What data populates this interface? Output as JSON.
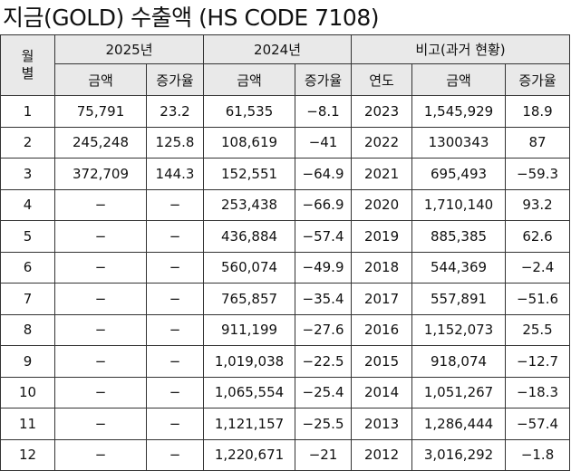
{
  "title": "지금(GOLD) 수출액 (HS CODE 7108)",
  "header": {
    "month_line1": "월",
    "month_line2": "별",
    "group_2025": "2025년",
    "group_2024": "2024년",
    "group_past": "비고(과거 현황)",
    "amount": "금액",
    "growth": "증가율",
    "year": "연도"
  },
  "rows": [
    {
      "month": "1",
      "a2025": "75,791",
      "g2025": "23.2",
      "a2024": "61,535",
      "g2024": "−8.1",
      "year": "2023",
      "past_amount": "1,545,929",
      "past_growth": "18.9"
    },
    {
      "month": "2",
      "a2025": "245,248",
      "g2025": "125.8",
      "a2024": "108,619",
      "g2024": "−41",
      "year": "2022",
      "past_amount": "1300343",
      "past_growth": "87"
    },
    {
      "month": "3",
      "a2025": "372,709",
      "g2025": "144.3",
      "a2024": "152,551",
      "g2024": "−64.9",
      "year": "2021",
      "past_amount": "695,493",
      "past_growth": "−59.3"
    },
    {
      "month": "4",
      "a2025": "−",
      "g2025": "−",
      "a2024": "253,438",
      "g2024": "−66.9",
      "year": "2020",
      "past_amount": "1,710,140",
      "past_growth": "93.2"
    },
    {
      "month": "5",
      "a2025": "−",
      "g2025": "−",
      "a2024": "436,884",
      "g2024": "−57.4",
      "year": "2019",
      "past_amount": "885,385",
      "past_growth": "62.6"
    },
    {
      "month": "6",
      "a2025": "−",
      "g2025": "−",
      "a2024": "560,074",
      "g2024": "−49.9",
      "year": "2018",
      "past_amount": "544,369",
      "past_growth": "−2.4"
    },
    {
      "month": "7",
      "a2025": "−",
      "g2025": "−",
      "a2024": "765,857",
      "g2024": "−35.4",
      "year": "2017",
      "past_amount": "557,891",
      "past_growth": "−51.6"
    },
    {
      "month": "8",
      "a2025": "−",
      "g2025": "−",
      "a2024": "911,199",
      "g2024": "−27.6",
      "year": "2016",
      "past_amount": "1,152,073",
      "past_growth": "25.5"
    },
    {
      "month": "9",
      "a2025": "−",
      "g2025": "−",
      "a2024": "1,019,038",
      "g2024": "−22.5",
      "year": "2015",
      "past_amount": "918,074",
      "past_growth": "−12.7"
    },
    {
      "month": "10",
      "a2025": "−",
      "g2025": "−",
      "a2024": "1,065,554",
      "g2024": "−25.4",
      "year": "2014",
      "past_amount": "1,051,267",
      "past_growth": "−18.3"
    },
    {
      "month": "11",
      "a2025": "−",
      "g2025": "−",
      "a2024": "1,121,157",
      "g2024": "−25.5",
      "year": "2013",
      "past_amount": "1,286,444",
      "past_growth": "−57.4"
    },
    {
      "month": "12",
      "a2025": "−",
      "g2025": "−",
      "a2024": "1,220,671",
      "g2024": "−21",
      "year": "2012",
      "past_amount": "3,016,292",
      "past_growth": "−1.8"
    }
  ]
}
